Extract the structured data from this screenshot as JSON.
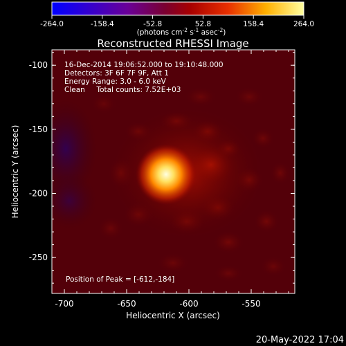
{
  "colorbar": {
    "ticks": [
      "-264.0",
      "-158.4",
      "-52.8",
      "52.8",
      "158.4",
      "264.0"
    ],
    "units_prefix": "(photons cm",
    "units_exp1": "-2",
    "units_mid": " s",
    "units_exp2": "-1",
    "units_mid2": " asec",
    "units_exp3": "-2",
    "units_suffix": ")"
  },
  "image": {
    "title": "Reconstructed RHESSI Image",
    "annotation_lines": [
      "16-Dec-2014 19:06:52.000 to 19:10:48.000",
      "Detectors: 3F 6F 7F 9F, Att 1",
      "Energy Range: 3.0 - 6.0 keV",
      "Clean     Total counts: 7.52E+03"
    ],
    "peak_label": "Position of Peak = [-612,-184]",
    "x_axis_label": "Heliocentric X (arcsec)",
    "y_axis_label": "Heliocentric Y (arcsec)",
    "x_ticks": [
      "-700",
      "-650",
      "-600",
      "-550"
    ],
    "y_ticks": [
      "-100",
      "-150",
      "-200",
      "-250"
    ],
    "x_tick_values": [
      -700,
      -650,
      -600,
      -550
    ],
    "y_tick_values": [
      -100,
      -150,
      -200,
      -250
    ],
    "x_range": [
      -710,
      -515
    ],
    "y_range": [
      -278,
      -88
    ],
    "peak_position": [
      -612,
      -184
    ]
  },
  "footer": {
    "timestamp": "20-May-2022 17:04"
  }
}
